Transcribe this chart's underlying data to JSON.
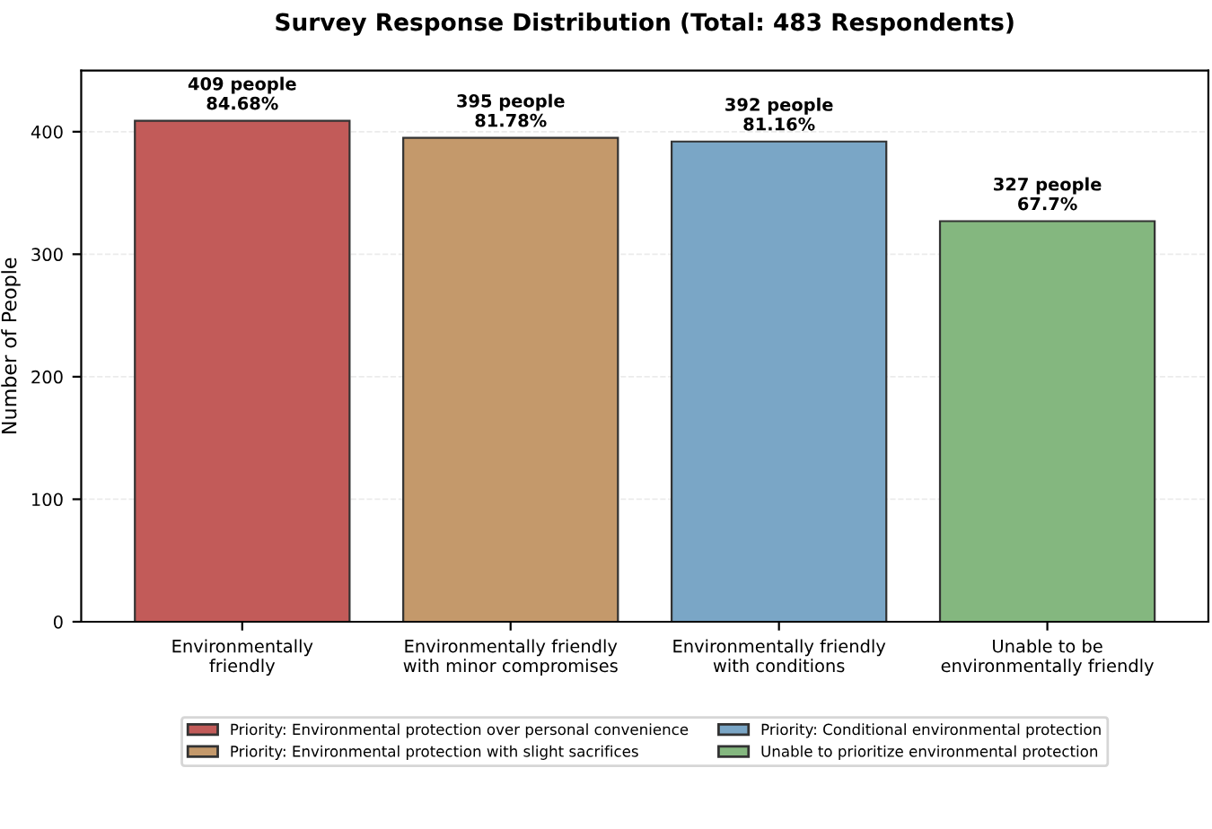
{
  "chart_data": {
    "type": "bar",
    "title": "Survey Response Distribution (Total: 483 Respondents)",
    "ylabel": "Number of People",
    "categories": [
      "Environmentally\nfriendly",
      "Environmentally friendly\nwith minor compromises",
      "Environmentally friendly\nwith conditions",
      "Unable to be\nenvironmentally friendly"
    ],
    "series": [
      {
        "name": "Priority: Environmental protection over personal convenience",
        "color": "#c25b59",
        "values": [
          409,
          null,
          null,
          null
        ],
        "value_labels": [
          "409 people\n84.68%",
          null,
          null,
          null
        ]
      },
      {
        "name": "Priority: Environmental protection with slight sacrifices",
        "color": "#c4996b",
        "values": [
          null,
          395,
          null,
          null
        ],
        "value_labels": [
          null,
          "395 people\n81.78%",
          null,
          null
        ]
      },
      {
        "name": "Priority: Conditional environmental protection",
        "color": "#7aa6c6",
        "values": [
          null,
          null,
          392,
          null
        ],
        "value_labels": [
          null,
          null,
          "392 people\n81.16%",
          null
        ]
      },
      {
        "name": "Unable to prioritize environmental protection",
        "color": "#84b77f",
        "values": [
          null,
          null,
          null,
          327
        ],
        "value_labels": [
          null,
          null,
          null,
          "327 people\n67.7%"
        ]
      }
    ],
    "ylim": [
      0,
      450
    ],
    "yticks": [
      0,
      100,
      200,
      300,
      400
    ],
    "grid": "y",
    "legend": "bottom"
  }
}
